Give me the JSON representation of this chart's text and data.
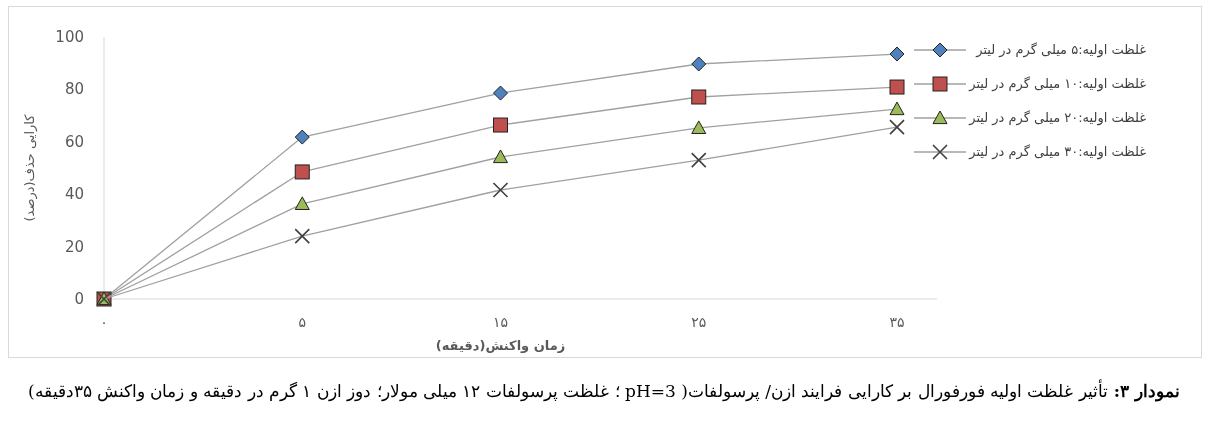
{
  "chart_data": {
    "type": "line",
    "xlabel": "زمان واکنش(دقیقه)",
    "ylabel": "کارایی حذف(درصد)",
    "categories": [
      "۰",
      "۵",
      "۱۵",
      "۲۵",
      "۳۵"
    ],
    "ylim": [
      0,
      100
    ],
    "yticks": [
      0,
      20,
      40,
      60,
      80,
      100
    ],
    "grid": false,
    "legend": "right",
    "series": [
      {
        "name": "غلظت اولیه:۵ میلی گرم در لیتر",
        "color": "#4f81bd",
        "marker": "diamond",
        "values": [
          0,
          61.8,
          78.6,
          89.7,
          93.5
        ]
      },
      {
        "name": "غلظت اولیه:۱۰ میلی گرم در لیتر",
        "color": "#c0504d",
        "marker": "square",
        "values": [
          0,
          48.5,
          66.4,
          77.1,
          80.9
        ]
      },
      {
        "name": "غلظت اولیه:۲۰ میلی گرم در لیتر",
        "color": "#9bbb59",
        "marker": "triangle",
        "values": [
          0,
          36.3,
          54.2,
          65.3,
          72.5
        ]
      },
      {
        "name": "غلظت اولیه:۳۰ میلی گرم در لیتر",
        "color": "#404040",
        "marker": "cross",
        "values": [
          0,
          24,
          41.6,
          53,
          65.6
        ]
      }
    ],
    "annotations": [
      "نمودار ۳:",
      "تأثیر غلظت اولیه فورفورال بر کارایی فرایند ازن/ پرسولفات( pH=3 ؛ غلظت پرسولفات ۱۲ میلی مولار؛ دوز ازن ۱ گرم در دقیقه و زمان واکنش ۳۵دقیقه)"
    ]
  }
}
